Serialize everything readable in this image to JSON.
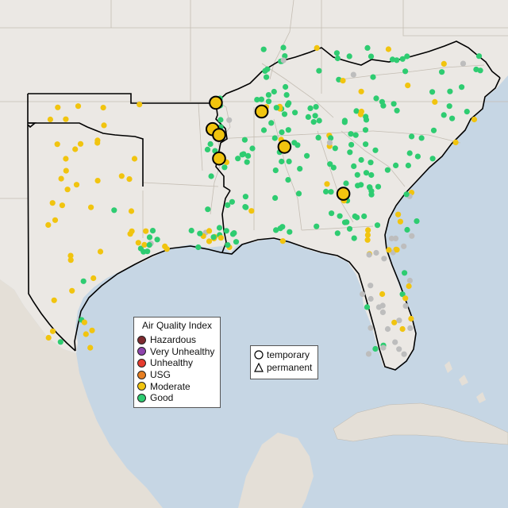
{
  "legend": {
    "title": "Air Quality Index",
    "categories": [
      {
        "label": "Hazardous",
        "color": "#7e2a2f"
      },
      {
        "label": "Very Unhealthy",
        "color": "#8e44ad"
      },
      {
        "label": "Unhealthy",
        "color": "#e63c2f"
      },
      {
        "label": "USG",
        "color": "#e67e22"
      },
      {
        "label": "Moderate",
        "color": "#f1c40f"
      },
      {
        "label": "Good",
        "color": "#2ecc71"
      }
    ],
    "no_data_color": "#bdbdbd"
  },
  "monitor_types": {
    "temporary_label": "temporary",
    "permanent_label": "permanent",
    "temporary_shape": "circle",
    "permanent_shape": "triangle"
  },
  "map": {
    "region": "Southeastern United States",
    "land_color": "#ebe8e4",
    "water_color": "#c6d6e4",
    "outline_color": "#000000"
  },
  "temporary_monitors": [
    {
      "aqi_category": "Moderate",
      "lat": 36.8,
      "lon": -99.6
    },
    {
      "aqi_category": "Moderate",
      "lat": 36.5,
      "lon": -98.2
    },
    {
      "aqi_category": "Moderate",
      "lat": 35.9,
      "lon": -99.7
    },
    {
      "aqi_category": "Moderate",
      "lat": 35.7,
      "lon": -99.5
    },
    {
      "aqi_category": "Moderate",
      "lat": 35.3,
      "lon": -97.5
    },
    {
      "aqi_category": "Moderate",
      "lat": 34.9,
      "lon": -99.5
    },
    {
      "aqi_category": "Moderate",
      "lat": 33.7,
      "lon": -95.7
    },
    {
      "aqi_category": "Moderate",
      "lat": 28.5,
      "lon": -100.3
    },
    {
      "aqi_category": "Moderate",
      "lat": 26.8,
      "lon": -101.3
    }
  ],
  "permanent_monitor_count": 300
}
